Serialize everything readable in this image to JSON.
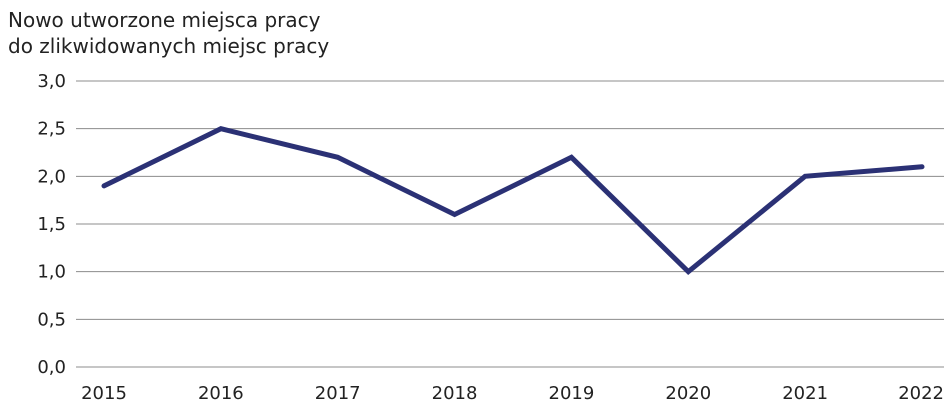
{
  "chart_data": {
    "type": "line",
    "title": "",
    "ylabel_lines": [
      "Nowo utworzone miejsca pracy",
      "do zlikwidowanych miejsc pracy"
    ],
    "xlabel": "",
    "x": [
      "2015",
      "2016",
      "2017",
      "2018",
      "2019",
      "2020",
      "2021",
      "2022"
    ],
    "series": [
      {
        "values": [
          1.9,
          2.5,
          2.2,
          1.6,
          2.2,
          1.0,
          2.0,
          2.1
        ]
      }
    ],
    "ylim": [
      0,
      3
    ],
    "yticks": [
      0,
      0.5,
      1,
      1.5,
      2,
      2.5,
      3
    ],
    "ytick_labels": [
      "0,0",
      "0,5",
      "1,0",
      "1,5",
      "2,0",
      "2,5",
      "3,0"
    ],
    "grid": true,
    "legend": "none",
    "line_color": "#2b3175",
    "grid_color": "#8c8c8c"
  }
}
